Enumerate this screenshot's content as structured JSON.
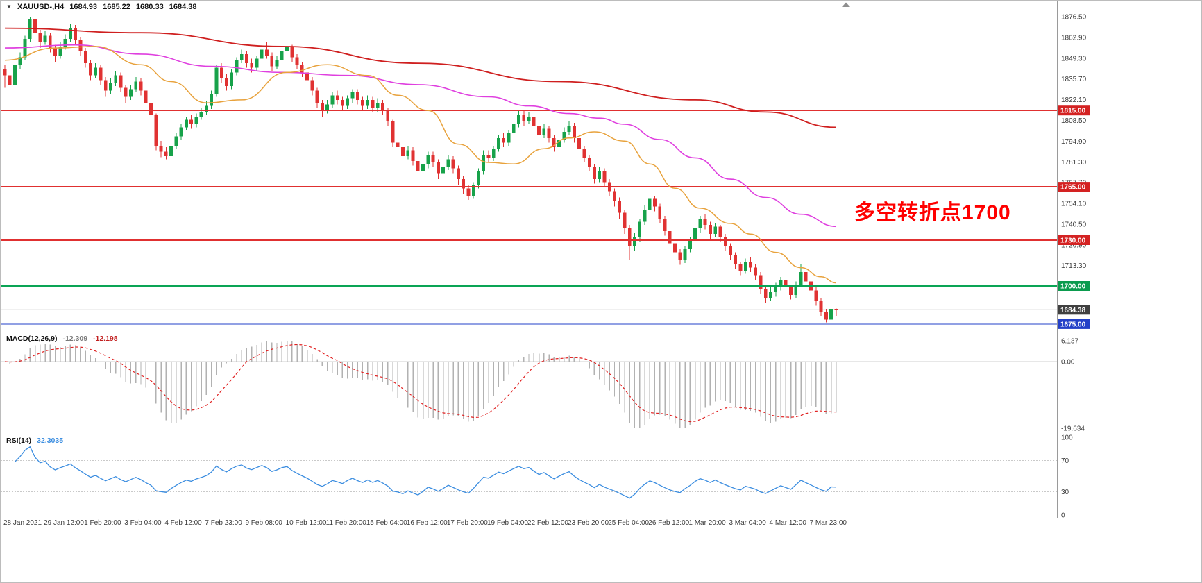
{
  "title": {
    "dropdown_icon": "▼",
    "symbol_period": "XAUUSD-,H4",
    "open": "1684.93",
    "high": "1685.22",
    "low": "1680.33",
    "close": "1684.38"
  },
  "annotation": {
    "text": "多空转折点1700",
    "color": "#ff0000"
  },
  "indicators": {
    "macd": {
      "label": "MACD(12,26,9)",
      "value_main": "-12.309",
      "value_signal": "-12.198",
      "scale_max": "6.137",
      "scale_zero": "0.00",
      "scale_min": "-19.634"
    },
    "rsi": {
      "label": "RSI(14)",
      "value": "32.3035",
      "ticks": [
        "100",
        "70",
        "30",
        "0"
      ],
      "levels": [
        70,
        30
      ]
    }
  },
  "price_axis": {
    "ticks": [
      "1876.50",
      "1862.90",
      "1849.30",
      "1835.70",
      "1822.10",
      "1808.50",
      "1794.90",
      "1781.30",
      "1767.70",
      "1754.10",
      "1740.50",
      "1726.90",
      "1713.30"
    ],
    "tags": [
      {
        "text": "1815.00",
        "price": 1815,
        "bg": "#d42222"
      },
      {
        "text": "1765.00",
        "price": 1765,
        "bg": "#d42222"
      },
      {
        "text": "1730.00",
        "price": 1730,
        "bg": "#d42222"
      },
      {
        "text": "1700.00",
        "price": 1700,
        "bg": "#0b9b4e"
      },
      {
        "text": "1684.38",
        "price": 1684.38,
        "bg": "#404040"
      },
      {
        "text": "1675.00",
        "price": 1675,
        "bg": "#2340c8"
      }
    ]
  },
  "time_axis": {
    "labels": [
      "28 Jan 2021",
      "29 Jan 12:00",
      "1 Feb 20:00",
      "3 Feb 04:00",
      "4 Feb 12:00",
      "7 Feb 23:00",
      "9 Feb 08:00",
      "10 Feb 12:00",
      "11 Feb 20:00",
      "15 Feb 04:00",
      "16 Feb 12:00",
      "17 Feb 20:00",
      "19 Feb 04:00",
      "22 Feb 12:00",
      "23 Feb 20:00",
      "25 Feb 04:00",
      "26 Feb 12:00",
      "1 Mar 20:00",
      "3 Mar 04:00",
      "4 Mar 12:00",
      "7 Mar 23:00"
    ]
  },
  "colors": {
    "up": "#17a24a",
    "down": "#e03232",
    "macd_hist": "#b2b2b2",
    "macd_signal": "#e02020",
    "rsi_line": "#3b8de0",
    "current_line": "#8a8a8a"
  },
  "chart_data": {
    "type": "candlestick",
    "symbol": "XAUUSD",
    "timeframe": "H4",
    "title": "XAUUSD-,H4",
    "ylim": [
      1669.5,
      1887
    ],
    "current_price": 1684.38,
    "candles": [
      [
        1842,
        1845,
        1830,
        1838
      ],
      [
        1838,
        1840,
        1828,
        1832
      ],
      [
        1832,
        1847,
        1830,
        1845
      ],
      [
        1845,
        1853,
        1842,
        1850
      ],
      [
        1850,
        1864,
        1848,
        1862
      ],
      [
        1862,
        1876.5,
        1860,
        1875
      ],
      [
        1875,
        1876,
        1863,
        1866
      ],
      [
        1866,
        1868,
        1856,
        1860
      ],
      [
        1860,
        1867,
        1858,
        1864
      ],
      [
        1864,
        1866,
        1853,
        1856
      ],
      [
        1856,
        1858,
        1847,
        1851
      ],
      [
        1851,
        1860,
        1849,
        1857
      ],
      [
        1857,
        1865,
        1855,
        1862
      ],
      [
        1862,
        1872,
        1860,
        1869
      ],
      [
        1869,
        1871,
        1858,
        1861
      ],
      [
        1861,
        1863,
        1851,
        1854
      ],
      [
        1854,
        1856,
        1843,
        1846
      ],
      [
        1846,
        1848,
        1835,
        1838
      ],
      [
        1838,
        1846,
        1836,
        1843
      ],
      [
        1843,
        1845,
        1832,
        1835
      ],
      [
        1835,
        1837,
        1824,
        1828
      ],
      [
        1828,
        1836,
        1826,
        1833
      ],
      [
        1833,
        1841,
        1831,
        1838
      ],
      [
        1838,
        1840,
        1827,
        1830
      ],
      [
        1830,
        1832,
        1820,
        1824
      ],
      [
        1824,
        1832,
        1822,
        1829
      ],
      [
        1829,
        1837,
        1827,
        1834
      ],
      [
        1834,
        1836,
        1825,
        1828
      ],
      [
        1828,
        1830,
        1817,
        1820
      ],
      [
        1820,
        1822,
        1808,
        1812
      ],
      [
        1812,
        1813,
        1789,
        1792
      ],
      [
        1792,
        1795,
        1784.5,
        1788
      ],
      [
        1788,
        1791,
        1783,
        1785
      ],
      [
        1785,
        1794,
        1783,
        1792
      ],
      [
        1792,
        1800,
        1790,
        1798
      ],
      [
        1798,
        1806,
        1796,
        1804
      ],
      [
        1804,
        1811,
        1802,
        1809
      ],
      [
        1809,
        1812,
        1803,
        1806
      ],
      [
        1806,
        1813,
        1804,
        1811
      ],
      [
        1811,
        1817,
        1809,
        1814
      ],
      [
        1814,
        1821,
        1812,
        1818
      ],
      [
        1818,
        1828,
        1816,
        1826
      ],
      [
        1826,
        1845,
        1824,
        1843
      ],
      [
        1843,
        1846,
        1833,
        1836
      ],
      [
        1836,
        1839,
        1828,
        1831
      ],
      [
        1831,
        1842,
        1829,
        1840
      ],
      [
        1840,
        1850,
        1838,
        1848
      ],
      [
        1848,
        1855,
        1846,
        1852
      ],
      [
        1852,
        1854,
        1843,
        1846
      ],
      [
        1846,
        1849,
        1840,
        1843
      ],
      [
        1843,
        1851,
        1841,
        1849
      ],
      [
        1849,
        1858,
        1847,
        1855
      ],
      [
        1855,
        1860,
        1849,
        1851
      ],
      [
        1851,
        1853,
        1841,
        1844
      ],
      [
        1844,
        1851,
        1842,
        1848
      ],
      [
        1848,
        1856,
        1845,
        1854
      ],
      [
        1854,
        1859,
        1851,
        1857
      ],
      [
        1857,
        1858,
        1847,
        1850
      ],
      [
        1850,
        1852,
        1842,
        1845
      ],
      [
        1845,
        1847,
        1837,
        1840
      ],
      [
        1840,
        1842,
        1832,
        1835
      ],
      [
        1835,
        1837,
        1825,
        1828
      ],
      [
        1828,
        1830,
        1817,
        1820
      ],
      [
        1820,
        1822,
        1811,
        1815
      ],
      [
        1815,
        1822,
        1813,
        1819
      ],
      [
        1819,
        1827,
        1817,
        1825
      ],
      [
        1825,
        1828,
        1819,
        1822
      ],
      [
        1822,
        1824,
        1815,
        1818
      ],
      [
        1818,
        1825,
        1816,
        1823
      ],
      [
        1823,
        1829,
        1820,
        1827
      ],
      [
        1827,
        1829,
        1819,
        1822
      ],
      [
        1822,
        1824,
        1815,
        1818
      ],
      [
        1818,
        1825,
        1816,
        1822
      ],
      [
        1822,
        1824,
        1814,
        1817
      ],
      [
        1817,
        1823,
        1814,
        1820
      ],
      [
        1820,
        1822,
        1812,
        1815
      ],
      [
        1815,
        1817,
        1805,
        1808
      ],
      [
        1808,
        1809,
        1791,
        1794
      ],
      [
        1794,
        1797,
        1788,
        1791
      ],
      [
        1791,
        1793,
        1782,
        1785
      ],
      [
        1785,
        1792,
        1783,
        1789
      ],
      [
        1789,
        1791,
        1779,
        1782
      ],
      [
        1782,
        1784,
        1771,
        1775
      ],
      [
        1775,
        1783,
        1772,
        1780
      ],
      [
        1780,
        1788,
        1777,
        1786
      ],
      [
        1786,
        1788,
        1778,
        1781
      ],
      [
        1781,
        1783,
        1770,
        1774
      ],
      [
        1774,
        1781,
        1772,
        1778
      ],
      [
        1778,
        1786,
        1776,
        1783
      ],
      [
        1783,
        1785,
        1774,
        1777
      ],
      [
        1777,
        1779,
        1766,
        1770
      ],
      [
        1770,
        1772,
        1760,
        1764
      ],
      [
        1764,
        1766,
        1756.5,
        1759
      ],
      [
        1759,
        1768,
        1757,
        1766
      ],
      [
        1766,
        1777,
        1764,
        1775
      ],
      [
        1775,
        1789,
        1773,
        1786
      ],
      [
        1786,
        1789,
        1781,
        1784
      ],
      [
        1784,
        1792,
        1782,
        1790
      ],
      [
        1790,
        1799,
        1788,
        1797
      ],
      [
        1797,
        1800,
        1791,
        1794
      ],
      [
        1794,
        1802,
        1792,
        1800
      ],
      [
        1800,
        1808,
        1798,
        1806
      ],
      [
        1806,
        1815,
        1804,
        1812
      ],
      [
        1812,
        1815.5,
        1805,
        1808
      ],
      [
        1808,
        1814,
        1806,
        1811
      ],
      [
        1811,
        1813,
        1802,
        1805
      ],
      [
        1805,
        1807,
        1796,
        1799
      ],
      [
        1799,
        1806,
        1797,
        1803
      ],
      [
        1803,
        1805,
        1794,
        1797
      ],
      [
        1797,
        1799,
        1788,
        1791
      ],
      [
        1791,
        1798,
        1789,
        1796
      ],
      [
        1796,
        1804,
        1794,
        1801
      ],
      [
        1801,
        1808,
        1799,
        1805
      ],
      [
        1805,
        1807,
        1794,
        1797
      ],
      [
        1797,
        1799,
        1787,
        1790
      ],
      [
        1790,
        1792,
        1781,
        1784
      ],
      [
        1784,
        1786,
        1775,
        1778
      ],
      [
        1778,
        1780,
        1767,
        1770
      ],
      [
        1770,
        1778,
        1768,
        1775
      ],
      [
        1775,
        1777,
        1765,
        1768
      ],
      [
        1768,
        1770,
        1759,
        1762
      ],
      [
        1762,
        1764,
        1752,
        1756
      ],
      [
        1756,
        1758,
        1744,
        1748
      ],
      [
        1748,
        1750,
        1734,
        1738
      ],
      [
        1738,
        1740,
        1717,
        1726
      ],
      [
        1726,
        1735,
        1723,
        1732
      ],
      [
        1732,
        1744,
        1729,
        1742
      ],
      [
        1742,
        1753,
        1740,
        1750
      ],
      [
        1750,
        1760,
        1748,
        1757
      ],
      [
        1757,
        1759,
        1749,
        1752
      ],
      [
        1752,
        1754,
        1741,
        1744
      ],
      [
        1744,
        1746,
        1733,
        1736
      ],
      [
        1736,
        1738,
        1725,
        1728
      ],
      [
        1728,
        1730,
        1719,
        1722
      ],
      [
        1722,
        1724,
        1713.8,
        1717
      ],
      [
        1717,
        1726,
        1715,
        1724
      ],
      [
        1724,
        1732,
        1722,
        1730
      ],
      [
        1730,
        1740,
        1728,
        1738
      ],
      [
        1738,
        1746,
        1735,
        1744
      ],
      [
        1744,
        1747,
        1737,
        1740
      ],
      [
        1740,
        1742,
        1731,
        1734
      ],
      [
        1734,
        1741,
        1732,
        1739
      ],
      [
        1739,
        1740,
        1729,
        1732
      ],
      [
        1732,
        1734,
        1723,
        1726
      ],
      [
        1726,
        1728,
        1717,
        1720
      ],
      [
        1720,
        1722,
        1711,
        1714
      ],
      [
        1714,
        1716,
        1707,
        1710
      ],
      [
        1710,
        1718,
        1708,
        1716
      ],
      [
        1716,
        1719,
        1709,
        1712
      ],
      [
        1712,
        1714,
        1704,
        1707
      ],
      [
        1707,
        1709,
        1695,
        1698
      ],
      [
        1698,
        1700,
        1689,
        1692
      ],
      [
        1692,
        1699,
        1690,
        1696
      ],
      [
        1696,
        1702,
        1693,
        1700
      ],
      [
        1700,
        1706,
        1697,
        1704
      ],
      [
        1704,
        1706,
        1696,
        1699
      ],
      [
        1699,
        1701,
        1691,
        1694
      ],
      [
        1694,
        1703,
        1692,
        1701
      ],
      [
        1701,
        1714.3,
        1699,
        1709
      ],
      [
        1709,
        1711,
        1700,
        1703
      ],
      [
        1703,
        1705,
        1694,
        1697
      ],
      [
        1697,
        1699,
        1687,
        1690
      ],
      [
        1690,
        1692,
        1680,
        1683
      ],
      [
        1683,
        1685,
        1676.2,
        1678
      ],
      [
        1678,
        1685.5,
        1676.5,
        1684.9
      ],
      [
        1684.93,
        1685.22,
        1680.33,
        1684.38
      ]
    ],
    "overlays": [
      {
        "name": "ma-slow-red",
        "color": "#cf1f1f",
        "width": 1.8,
        "points": [
          [
            0,
            1869
          ],
          [
            27,
            1866
          ],
          [
            55,
            1857
          ],
          [
            82,
            1846
          ],
          [
            110,
            1834
          ],
          [
            137,
            1822
          ],
          [
            151,
            1814
          ],
          [
            165,
            1804
          ]
        ]
      },
      {
        "name": "ma-mid-magenta",
        "color": "#df3fdf",
        "width": 1.6,
        "points": [
          [
            0,
            1856
          ],
          [
            14,
            1858
          ],
          [
            27,
            1852
          ],
          [
            41,
            1844
          ],
          [
            55,
            1840
          ],
          [
            68,
            1838
          ],
          [
            82,
            1832
          ],
          [
            96,
            1824
          ],
          [
            104,
            1818
          ],
          [
            112,
            1813
          ],
          [
            118,
            1810
          ],
          [
            123,
            1806
          ],
          [
            130,
            1796
          ],
          [
            137,
            1784
          ],
          [
            144,
            1770
          ],
          [
            151,
            1758
          ],
          [
            158,
            1747
          ],
          [
            165,
            1739
          ]
        ]
      },
      {
        "name": "ma-fast-orange",
        "color": "#e8a23c",
        "width": 1.5,
        "points": [
          [
            0,
            1848
          ],
          [
            10,
            1856
          ],
          [
            18,
            1857
          ],
          [
            27,
            1845
          ],
          [
            33,
            1834
          ],
          [
            40,
            1820
          ],
          [
            47,
            1822
          ],
          [
            56,
            1840
          ],
          [
            64,
            1845
          ],
          [
            72,
            1838
          ],
          [
            78,
            1825
          ],
          [
            84,
            1815
          ],
          [
            90,
            1793
          ],
          [
            96,
            1781
          ],
          [
            101,
            1780
          ],
          [
            107,
            1790
          ],
          [
            112,
            1797
          ],
          [
            117,
            1801
          ],
          [
            123,
            1795
          ],
          [
            128,
            1780
          ],
          [
            133,
            1764
          ],
          [
            138,
            1751
          ],
          [
            144,
            1741
          ],
          [
            148,
            1734
          ],
          [
            153,
            1722
          ],
          [
            158,
            1712
          ],
          [
            162,
            1706
          ],
          [
            165,
            1702
          ]
        ]
      }
    ],
    "hlines": [
      {
        "price": 1815,
        "color": "#e03030",
        "width": 1.8
      },
      {
        "price": 1765,
        "color": "#e03030",
        "width": 1.8
      },
      {
        "price": 1730,
        "color": "#e03030",
        "width": 1.8
      },
      {
        "price": 1700,
        "color": "#0aa455",
        "width": 1.8
      },
      {
        "price": 1675,
        "color": "#2340c8",
        "width": 1.3
      }
    ],
    "macd_axis": {
      "max": 6.137,
      "min": -19.634,
      "view_min": -21.5,
      "view_max": 8.6
    },
    "rsi_axis": {
      "top": 100,
      "bottom": 0
    }
  }
}
